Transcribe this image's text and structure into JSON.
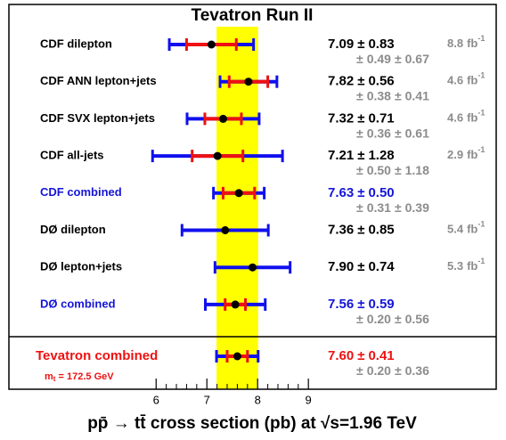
{
  "chart_data": {
    "type": "errorbar",
    "title": "Tevatron Run II",
    "xlabel": "pp̄ → tt̄ cross section (pb) at √s=1.96 TeV",
    "pm": "±",
    "lumi_unit": "fb",
    "lumi_unit_exp": "-1",
    "mass_note": [
      "m",
      "t",
      " = 172.5 GeV"
    ],
    "categories": [
      "CDF dilepton",
      "CDF ANN lepton+jets",
      "CDF SVX lepton+jets",
      "CDF all-jets",
      "CDF combined",
      "DØ dilepton",
      "DØ lepton+jets",
      "DØ combined",
      "Tevatron combined"
    ],
    "label_colors": [
      "#000000",
      "#000000",
      "#000000",
      "#000000",
      "#1515d8",
      "#000000",
      "#000000",
      "#1515d8",
      "#ee1111"
    ],
    "values": [
      7.09,
      7.82,
      7.32,
      7.21,
      7.63,
      7.36,
      7.9,
      7.56,
      7.6
    ],
    "value_labels": [
      "7.09",
      "7.82",
      "7.32",
      "7.21",
      "7.63",
      "7.36",
      "7.90",
      "7.56",
      "7.60"
    ],
    "errors_total": [
      0.83,
      0.56,
      0.71,
      1.28,
      0.5,
      0.85,
      0.74,
      0.59,
      0.41
    ],
    "errors_total_labels": [
      "0.83",
      "0.56",
      "0.71",
      "1.28",
      "0.50",
      "0.85",
      "0.74",
      "0.59",
      "0.41"
    ],
    "errors_stat": [
      0.49,
      0.38,
      0.36,
      0.5,
      0.31,
      null,
      null,
      0.2,
      0.2
    ],
    "errors_stat_labels": [
      "0.49",
      "0.38",
      "0.36",
      "0.50",
      "0.31",
      null,
      null,
      "0.20",
      "0.20"
    ],
    "errors_syst": [
      0.67,
      0.41,
      0.61,
      1.18,
      0.39,
      null,
      null,
      0.56,
      0.36
    ],
    "errors_syst_labels": [
      "0.67",
      "0.41",
      "0.61",
      "1.18",
      "0.39",
      null,
      null,
      "0.56",
      "0.36"
    ],
    "lumi": [
      8.8,
      4.6,
      4.6,
      2.9,
      null,
      5.4,
      5.3,
      null,
      null
    ],
    "total_color": "#1010ee",
    "stat_color": "#ee1111",
    "point_color": "#000000",
    "band_color": "#ffff00",
    "syst_text_color": "#8c8c8c",
    "xlim": [
      3.1,
      12.7
    ],
    "xticks": [
      6,
      7,
      8,
      9
    ],
    "xminor_ticks": [
      6.2,
      6.4,
      6.6,
      6.8,
      7.2,
      7.4,
      7.6,
      7.8,
      8.2,
      8.4,
      8.6,
      8.8
    ]
  }
}
